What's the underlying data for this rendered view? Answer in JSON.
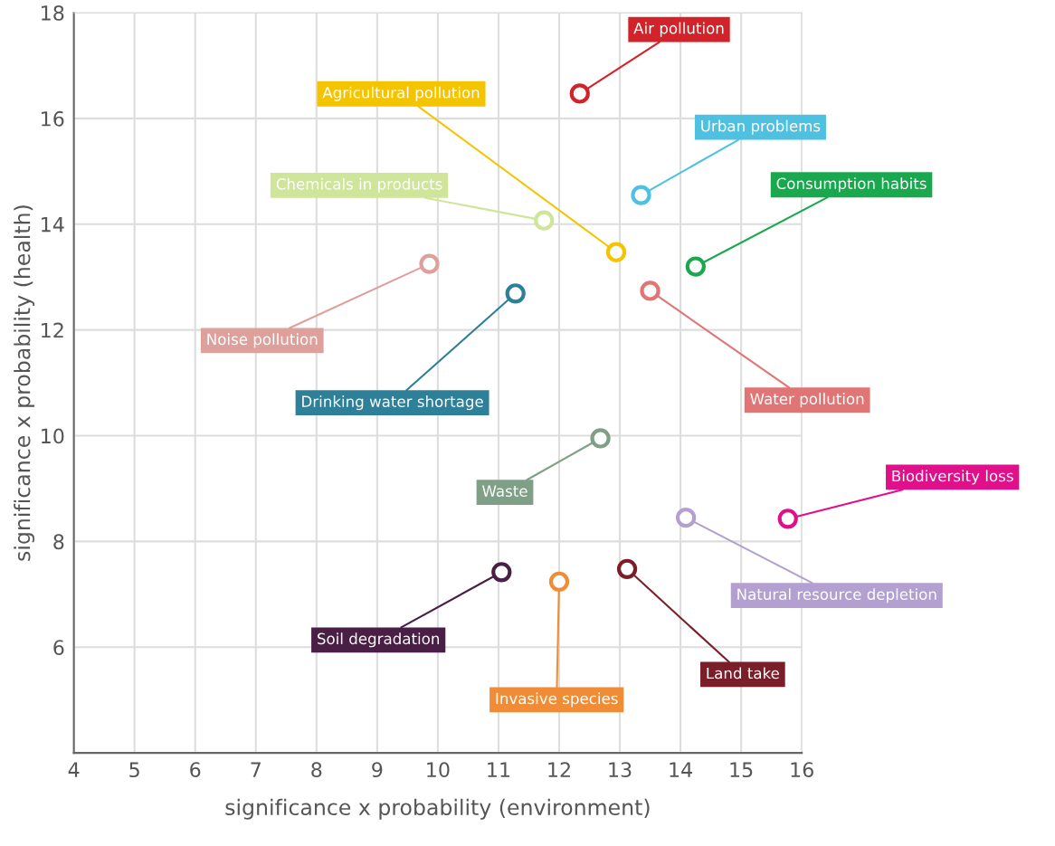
{
  "chart_data": {
    "type": "scatter",
    "xlabel": "significance x probability (environment)",
    "ylabel": "significance x probability (health)",
    "xlim": [
      4,
      16
    ],
    "xticks": [
      4,
      5,
      6,
      7,
      8,
      9,
      10,
      11,
      12,
      13,
      14,
      15,
      16
    ],
    "ylim": [
      4,
      18
    ],
    "yticks": [
      6,
      8,
      10,
      12,
      14,
      16,
      18
    ],
    "grid": true,
    "legend": false,
    "marker": "circle",
    "series": [
      {
        "name": "Air pollution",
        "color": "#d2232a",
        "x": [
          12.34
        ],
        "values": [
          16.47
        ]
      },
      {
        "name": "Agricultural pollution",
        "color": "#f5c400",
        "x": [
          12.94
        ],
        "values": [
          13.47
        ]
      },
      {
        "name": "Urban problems",
        "color": "#4fc1e0",
        "x": [
          13.35
        ],
        "values": [
          14.55
        ]
      },
      {
        "name": "Chemicals in products",
        "color": "#cfe59a",
        "x": [
          11.75
        ],
        "values": [
          14.07
        ]
      },
      {
        "name": "Consumption habits",
        "color": "#1aa84f",
        "x": [
          14.25
        ],
        "values": [
          13.2
        ]
      },
      {
        "name": "Noise pollution",
        "color": "#dea09a",
        "x": [
          9.86
        ],
        "values": [
          13.25
        ]
      },
      {
        "name": "Drinking water shortage",
        "color": "#2e7f98",
        "x": [
          11.28
        ],
        "values": [
          12.69
        ]
      },
      {
        "name": "Water pollution",
        "color": "#e07575",
        "x": [
          13.5
        ],
        "values": [
          12.74
        ]
      },
      {
        "name": "Waste",
        "color": "#7f9f87",
        "x": [
          12.68
        ],
        "values": [
          9.95
        ]
      },
      {
        "name": "Biodiversity loss",
        "color": "#e0108a",
        "x": [
          15.77
        ],
        "values": [
          8.43
        ]
      },
      {
        "name": "Natural resource depletion",
        "color": "#b3a0d0",
        "x": [
          14.09
        ],
        "values": [
          8.45
        ]
      },
      {
        "name": "Soil degradation",
        "color": "#4a1f45",
        "x": [
          11.05
        ],
        "values": [
          7.42
        ]
      },
      {
        "name": "Invasive species",
        "color": "#f08c35",
        "x": [
          12.0
        ],
        "values": [
          7.24
        ]
      },
      {
        "name": "Land take",
        "color": "#7a1f2a",
        "x": [
          13.12
        ],
        "values": [
          7.48
        ]
      }
    ]
  }
}
